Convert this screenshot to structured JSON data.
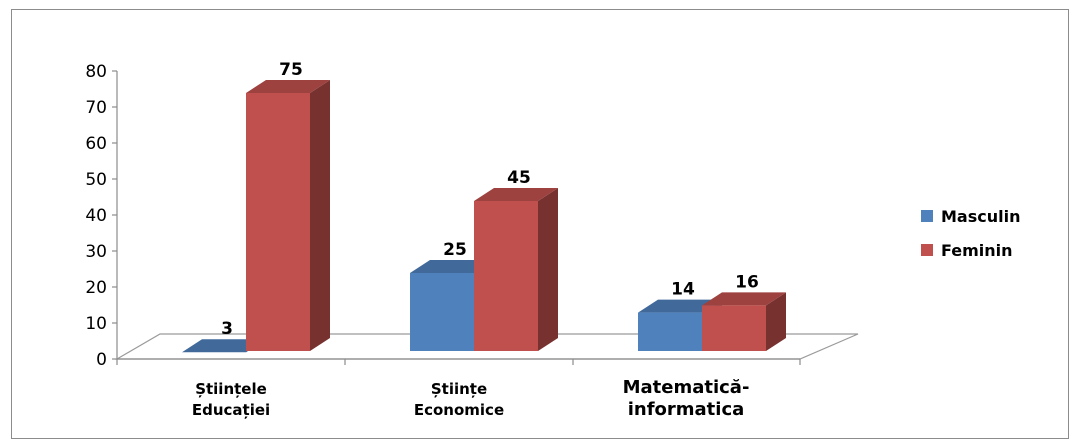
{
  "chart_data": {
    "type": "bar",
    "categories": [
      [
        "Științele",
        "Educației"
      ],
      [
        "Științe",
        "Economice"
      ],
      [
        "Matematică-",
        "informatica"
      ]
    ],
    "series": [
      {
        "name": "Masculin",
        "values": [
          3,
          25,
          14
        ],
        "color": "#4f81bd"
      },
      {
        "name": "Feminin",
        "values": [
          75,
          45,
          16
        ],
        "color": "#c0504d"
      }
    ],
    "ylim": [
      0,
      80
    ],
    "yticks": [
      0,
      10,
      20,
      30,
      40,
      50,
      60,
      70,
      80
    ],
    "grid": false,
    "legend_position": "right",
    "style": "3d-column"
  }
}
